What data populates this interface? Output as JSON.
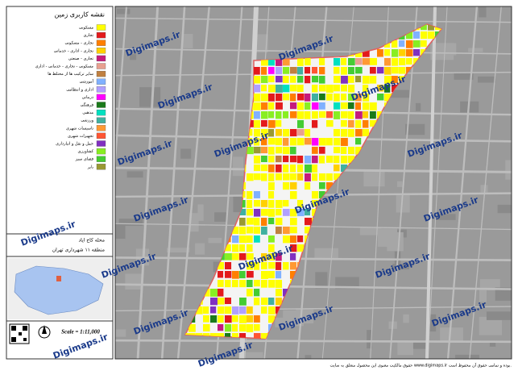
{
  "legend": {
    "title": "نقشه کاربری زمین",
    "items": [
      {
        "label": "مسکونی",
        "color": "#ffff00"
      },
      {
        "label": "تجاری",
        "color": "#e31a1c"
      },
      {
        "label": "تجاری - مسکونی",
        "color": "#ff7f00"
      },
      {
        "label": "تجاری - اداری - خدماتی",
        "color": "#ffd000"
      },
      {
        "label": "تجاری - صنعتی",
        "color": "#c51b7d"
      },
      {
        "label": "مسکونی - تجاری - خدماتی - اداری",
        "color": "#e8a090"
      },
      {
        "label": "سایر ترکیب ها از مختلط ها",
        "color": "#c08040"
      },
      {
        "label": "آموزشی",
        "color": "#80b1ff"
      },
      {
        "label": "اداری و انتظامی",
        "color": "#b0a0ff"
      },
      {
        "label": "درمانی",
        "color": "#ff00ff"
      },
      {
        "label": "فرهنگی",
        "color": "#1a7a1a"
      },
      {
        "label": "مذهبی",
        "color": "#00e0c0"
      },
      {
        "label": "ورزشی",
        "color": "#40b0a0"
      },
      {
        "label": "تاسیسات شهری",
        "color": "#ff9933"
      },
      {
        "label": "تجهیزات شهری",
        "color": "#ff5533"
      },
      {
        "label": "حمل و نقل و انبارداری",
        "color": "#8030c0"
      },
      {
        "label": "کشاورزی",
        "color": "#88ee22"
      },
      {
        "label": "فضای سبز",
        "color": "#44cc33"
      },
      {
        "label": "بایر",
        "color": "#999933"
      }
    ]
  },
  "location": {
    "neighborhood": "محله کاخ ایاد",
    "district": "منطقه ۱۱ شهرداری تهران"
  },
  "scale": "Scale = 1:11,000",
  "watermark": "Digimaps.ir",
  "footer": "حقوق مالکیت معنوی این محصول متعلق به سایت www.digimaps.ir بوده و تمامی حقوق آن محفوظ است."
}
